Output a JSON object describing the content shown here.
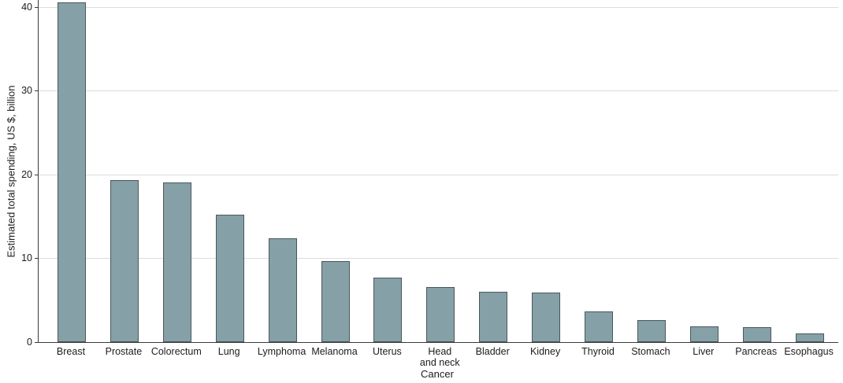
{
  "chart_data": {
    "type": "bar",
    "title": "",
    "categories": [
      "Breast",
      "Prostate",
      "Colorectum",
      "Lung",
      "Lymphoma",
      "Melanoma",
      "Uterus",
      "Head\nand neck",
      "Bladder",
      "Kidney",
      "Thyroid",
      "Stomach",
      "Liver",
      "Pancreas",
      "Esophagus"
    ],
    "values": [
      40.5,
      19.3,
      19.0,
      15.2,
      12.4,
      9.7,
      7.7,
      6.6,
      6.0,
      5.9,
      3.7,
      2.6,
      1.9,
      1.8,
      1.0
    ],
    "xlabel": "Cancer",
    "ylabel": "Estimated total spending, US $, billion",
    "ylim": [
      0,
      40.8
    ],
    "yticks": [
      0,
      10,
      20,
      30,
      40
    ],
    "grid": true,
    "legend": "none",
    "colors": {
      "bar_fill": "#85a0a6",
      "bar_border": "#4a585c",
      "gridline": "#dcdcdc",
      "axis_line": "#3a3a3a",
      "text": "#1c1c1c"
    }
  }
}
